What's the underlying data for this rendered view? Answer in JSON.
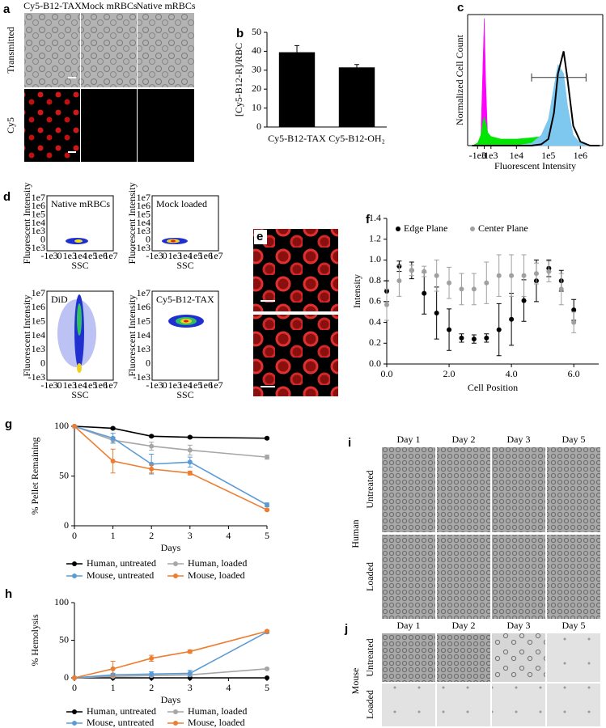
{
  "panels": {
    "a": {
      "label": "a",
      "columns": [
        "Cy5-B12-TAX",
        "Mock mRBCs",
        "Native mRBCs"
      ],
      "rows": [
        "Transmitted",
        "Cy5"
      ]
    },
    "d": {
      "label": "d",
      "plots": [
        "Native mRBCs",
        "Mock loaded",
        "DiD",
        "Cy5-B12-TAX"
      ],
      "y_label": "Fluorescent Intensity",
      "x_label": "SSC",
      "yticks": [
        "1e7",
        "1e6",
        "1e5",
        "1e4",
        "1e3",
        "0",
        "-1e3"
      ],
      "xticks": [
        "-1e3",
        "0",
        "1e3",
        "1e4",
        "1e5",
        "1e6",
        "1e7"
      ]
    },
    "e": {
      "label": "e"
    },
    "i": {
      "label": "i",
      "columns": [
        "Day 1",
        "Day 2",
        "Day 3",
        "Day 5"
      ],
      "rows": [
        "Untreated",
        "Loaded"
      ],
      "group": "Human"
    },
    "j": {
      "label": "j",
      "columns": [
        "Day 1",
        "Day 2",
        "Day 3",
        "Day 5"
      ],
      "rows": [
        "Untreated",
        "Loaded"
      ],
      "group": "Mouse"
    }
  },
  "chart_data": [
    {
      "type": "bar",
      "label": "b",
      "y_label": "[Cy5-B12-R]/RBC",
      "categories": [
        "Cy5-B12-TAX",
        "Cy5-B12-OH₂"
      ],
      "values": [
        39.5,
        31.5
      ],
      "errors": [
        3.5,
        1.5
      ],
      "color": "#000000",
      "ylim": [
        0,
        50
      ],
      "yticks": [
        0,
        10,
        20,
        30,
        40,
        50
      ]
    },
    {
      "type": "area",
      "label": "c",
      "y_label": "Normalized Cell Count",
      "x_label": "Fluorescent Intensity",
      "x_scale": "biexponential",
      "box": true,
      "x": [
        -2000,
        -1000,
        -500,
        -200,
        0,
        200,
        500,
        1000,
        3000,
        10000,
        30000,
        60000,
        100000,
        150000,
        200000,
        300000,
        400000,
        600000,
        1000000,
        2000000,
        4000000
      ],
      "xlim": [
        -3000,
        5000000
      ],
      "xticks": [
        {
          "value": -1000,
          "label": "-1e3"
        },
        0,
        {
          "value": 1000,
          "label": "1e3"
        },
        {
          "value": 10000,
          "label": "1e4"
        },
        {
          "value": 100000,
          "label": "1e5"
        },
        {
          "value": 1000000,
          "label": "1e6"
        }
      ],
      "ylim": [
        0,
        1
      ],
      "series": [
        {
          "color": "#ff00ff",
          "filled": true,
          "values": [
            0,
            0.01,
            0.05,
            0.6,
            0.97,
            0.5,
            0.05,
            0.01,
            0,
            0,
            0,
            0,
            0,
            0,
            0,
            0,
            0,
            0,
            0,
            0,
            0
          ]
        },
        {
          "color": "#00e600",
          "filled": true,
          "values": [
            0,
            0.02,
            0.08,
            0.18,
            0.22,
            0.18,
            0.1,
            0.07,
            0.05,
            0.05,
            0.06,
            0.07,
            0.09,
            0.13,
            0.18,
            0.2,
            0.15,
            0.06,
            0.02,
            0,
            0
          ]
        },
        {
          "color": "#7ec8f0",
          "filled": true,
          "values": [
            0,
            0,
            0,
            0,
            0,
            0,
            0,
            0,
            0,
            0,
            0.02,
            0.08,
            0.2,
            0.45,
            0.62,
            0.55,
            0.3,
            0.08,
            0.02,
            0,
            0
          ]
        },
        {
          "color": "#000000",
          "filled": false,
          "values": [
            0,
            0,
            0,
            0,
            0,
            0,
            0,
            0,
            0,
            0,
            0,
            0.01,
            0.05,
            0.25,
            0.55,
            0.72,
            0.5,
            0.15,
            0.03,
            0,
            0
          ]
        }
      ],
      "gate": {
        "x": [
          30000,
          1500000
        ],
        "y": 0.52
      }
    },
    {
      "type": "scatter",
      "label": "f",
      "y_label": "Intensity",
      "x_label": "Cell Position",
      "x": [
        0,
        0.4,
        0.8,
        1.2,
        1.6,
        2.0,
        2.4,
        2.8,
        3.2,
        3.6,
        4.0,
        4.4,
        4.8,
        5.2,
        5.6,
        6.0
      ],
      "xlim": [
        0,
        6.8
      ],
      "xticks": [
        {
          "value": 0,
          "label": "0.0"
        },
        {
          "value": 2,
          "label": "2.0"
        },
        {
          "value": 4,
          "label": "4.0"
        },
        {
          "value": 6,
          "label": "6.0"
        }
      ],
      "ylim": [
        0,
        1.4
      ],
      "yticks": [
        {
          "value": 0,
          "label": "0.0"
        },
        0.2,
        0.4,
        0.6,
        0.8,
        {
          "value": 1,
          "label": "1.0"
        },
        1.2,
        1.4
      ],
      "legend": "top",
      "series": [
        {
          "name": "Edge Plane",
          "color": "#000000",
          "values": [
            0.7,
            0.94,
            0.9,
            0.68,
            0.49,
            0.33,
            0.25,
            0.24,
            0.25,
            0.33,
            0.43,
            0.61,
            0.8,
            0.92,
            0.8,
            0.52
          ],
          "errors": [
            0.1,
            0.05,
            0.08,
            0.2,
            0.25,
            0.2,
            0.04,
            0.04,
            0.04,
            0.25,
            0.25,
            0.2,
            0.2,
            0.08,
            0.1,
            0.1
          ]
        },
        {
          "name": "Center Plane",
          "color": "#a0a0a0",
          "values": [
            0.57,
            0.8,
            0.9,
            0.89,
            0.85,
            0.78,
            0.72,
            0.72,
            0.78,
            0.85,
            0.85,
            0.85,
            0.87,
            0.89,
            0.72,
            0.4
          ],
          "errors": [
            0.15,
            0.15,
            0.05,
            0.05,
            0.15,
            0.15,
            0.15,
            0.15,
            0.2,
            0.2,
            0.2,
            0.2,
            0.1,
            0.1,
            0.15,
            0.1
          ]
        }
      ]
    },
    {
      "type": "line",
      "label": "g",
      "y_label": "% Pellet Remaining",
      "x_label": "Days",
      "x": [
        0,
        1,
        2,
        3,
        5
      ],
      "xlim": [
        0,
        5
      ],
      "xticks": [
        0,
        1,
        2,
        3,
        4,
        5
      ],
      "ylim": [
        0,
        100
      ],
      "yticks": [
        0,
        50,
        100
      ],
      "legend": "bottom",
      "series": [
        {
          "name": "Human, untreated",
          "color": "#000000",
          "values": [
            100,
            98,
            90,
            89,
            88
          ],
          "errors": [
            0,
            1,
            1,
            1,
            1
          ]
        },
        {
          "name": "Human, loaded",
          "color": "#a6a6a6",
          "values": [
            100,
            86,
            80,
            76,
            69
          ],
          "errors": [
            0,
            3,
            4,
            5,
            2
          ]
        },
        {
          "name": "Mouse, untreated",
          "color": "#5b9bd5",
          "values": [
            100,
            88,
            62,
            64,
            21
          ],
          "errors": [
            0,
            5,
            10,
            5,
            2
          ]
        },
        {
          "name": "Mouse, loaded",
          "color": "#ed7d31",
          "values": [
            100,
            65,
            57,
            53,
            16
          ],
          "errors": [
            0,
            12,
            4,
            2,
            1
          ]
        }
      ]
    },
    {
      "type": "line",
      "label": "h",
      "y_label": "% Hemolysis",
      "x_label": "Days",
      "x": [
        0,
        1,
        2,
        3,
        5
      ],
      "xlim": [
        0,
        5
      ],
      "xticks": [
        0,
        1,
        2,
        3,
        4,
        5
      ],
      "ylim": [
        0,
        100
      ],
      "yticks": [
        0,
        50,
        100
      ],
      "legend": "bottom",
      "series": [
        {
          "name": "Human, untreated",
          "color": "#000000",
          "values": [
            0,
            0,
            0,
            0,
            0
          ],
          "errors": [
            0,
            0,
            0,
            0,
            0
          ]
        },
        {
          "name": "Human, loaded",
          "color": "#a6a6a6",
          "values": [
            0,
            2,
            3,
            4,
            12
          ],
          "errors": [
            0,
            1,
            1,
            1,
            1
          ]
        },
        {
          "name": "Mouse, untreated",
          "color": "#5b9bd5",
          "values": [
            0,
            4,
            5,
            6,
            61
          ],
          "errors": [
            0,
            2,
            3,
            4,
            2
          ]
        },
        {
          "name": "Mouse, loaded",
          "color": "#ed7d31",
          "values": [
            0,
            12,
            26,
            35,
            62
          ],
          "errors": [
            0,
            10,
            4,
            2,
            1
          ]
        }
      ]
    }
  ]
}
